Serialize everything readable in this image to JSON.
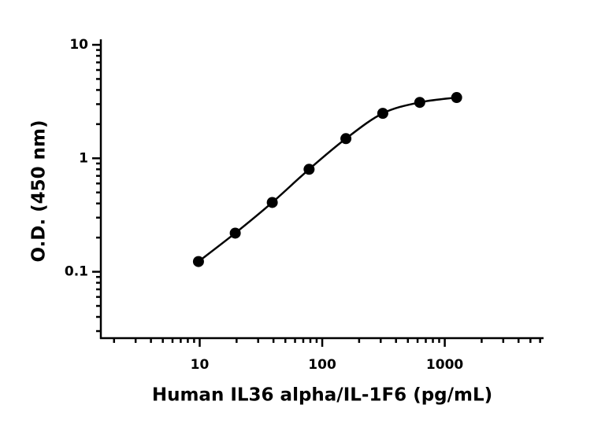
{
  "chart_data": {
    "type": "scatter",
    "xlabel": "Human IL36 alpha/IL-1F6 (pg/mL)",
    "ylabel": "O.D. (450 nm)",
    "x": [
      9.77,
      19.5,
      39.1,
      78.1,
      156,
      312,
      625,
      1250
    ],
    "series": [
      {
        "color": "#000000",
        "values": [
          0.123,
          0.219,
          0.408,
          0.8,
          1.49,
          2.49,
          3.11,
          3.43
        ]
      }
    ],
    "xscale": "log",
    "yscale": "log",
    "xlim": [
      1.56,
      6400
    ],
    "ylim": [
      0.026,
      10
    ],
    "xticks": [
      10,
      100,
      1000
    ],
    "yticks": [
      0.1,
      1,
      10
    ],
    "fit_curve": true
  }
}
